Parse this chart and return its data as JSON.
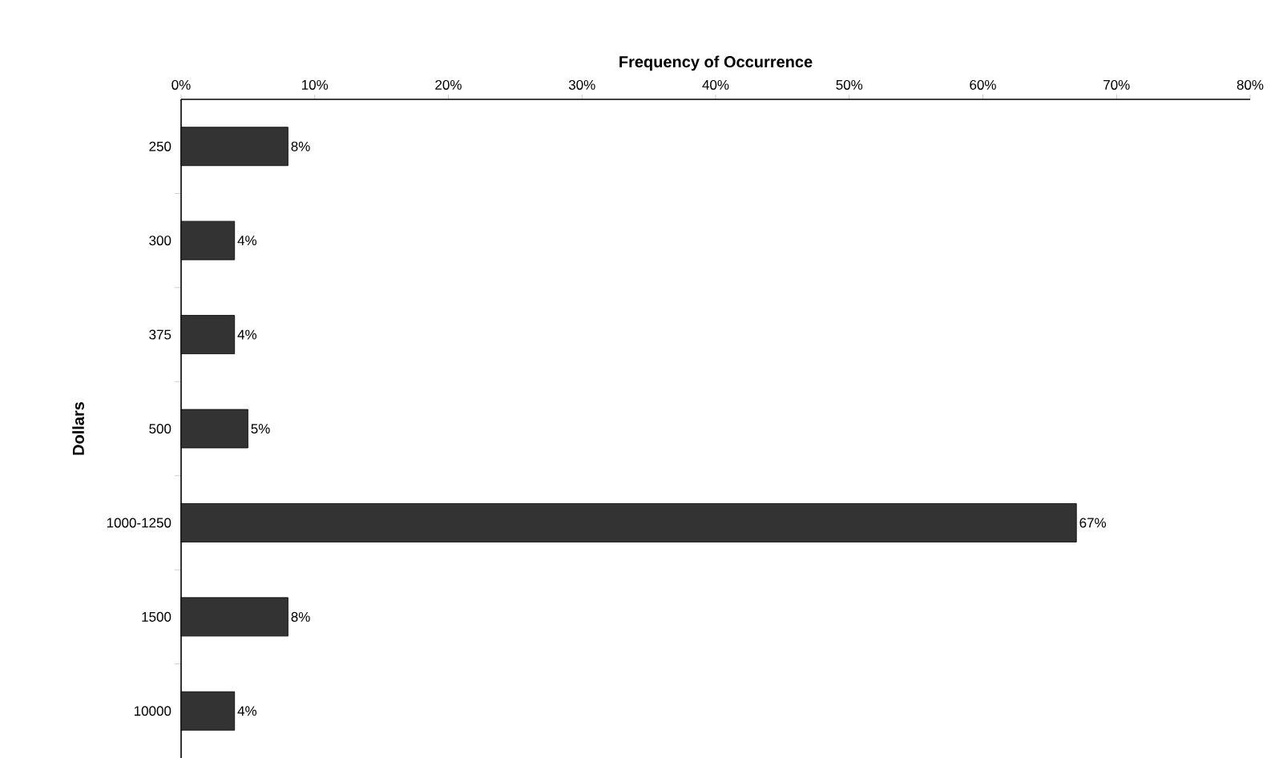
{
  "chart_data": {
    "type": "bar",
    "orientation": "horizontal",
    "xlabel": "Frequency of Occurrence",
    "ylabel": "Dollars",
    "categories": [
      "250",
      "300",
      "375",
      "500",
      "1000-1250",
      "1500",
      "10000"
    ],
    "values": [
      8,
      4,
      4,
      5,
      67,
      8,
      4
    ],
    "value_labels": [
      "8%",
      "4%",
      "4%",
      "5%",
      "67%",
      "8%",
      "4%"
    ],
    "color": "#333333",
    "xlim": [
      0,
      80
    ],
    "xticks": [
      {
        "value": 0,
        "label": "0%"
      },
      {
        "value": 10,
        "label": "10%"
      },
      {
        "value": 20,
        "label": "20%"
      },
      {
        "value": 30,
        "label": "30%"
      },
      {
        "value": 40,
        "label": "40%"
      },
      {
        "value": 50,
        "label": "50%"
      },
      {
        "value": 60,
        "label": "60%"
      },
      {
        "value": 70,
        "label": "70%"
      },
      {
        "value": 80,
        "label": "80%"
      }
    ]
  }
}
